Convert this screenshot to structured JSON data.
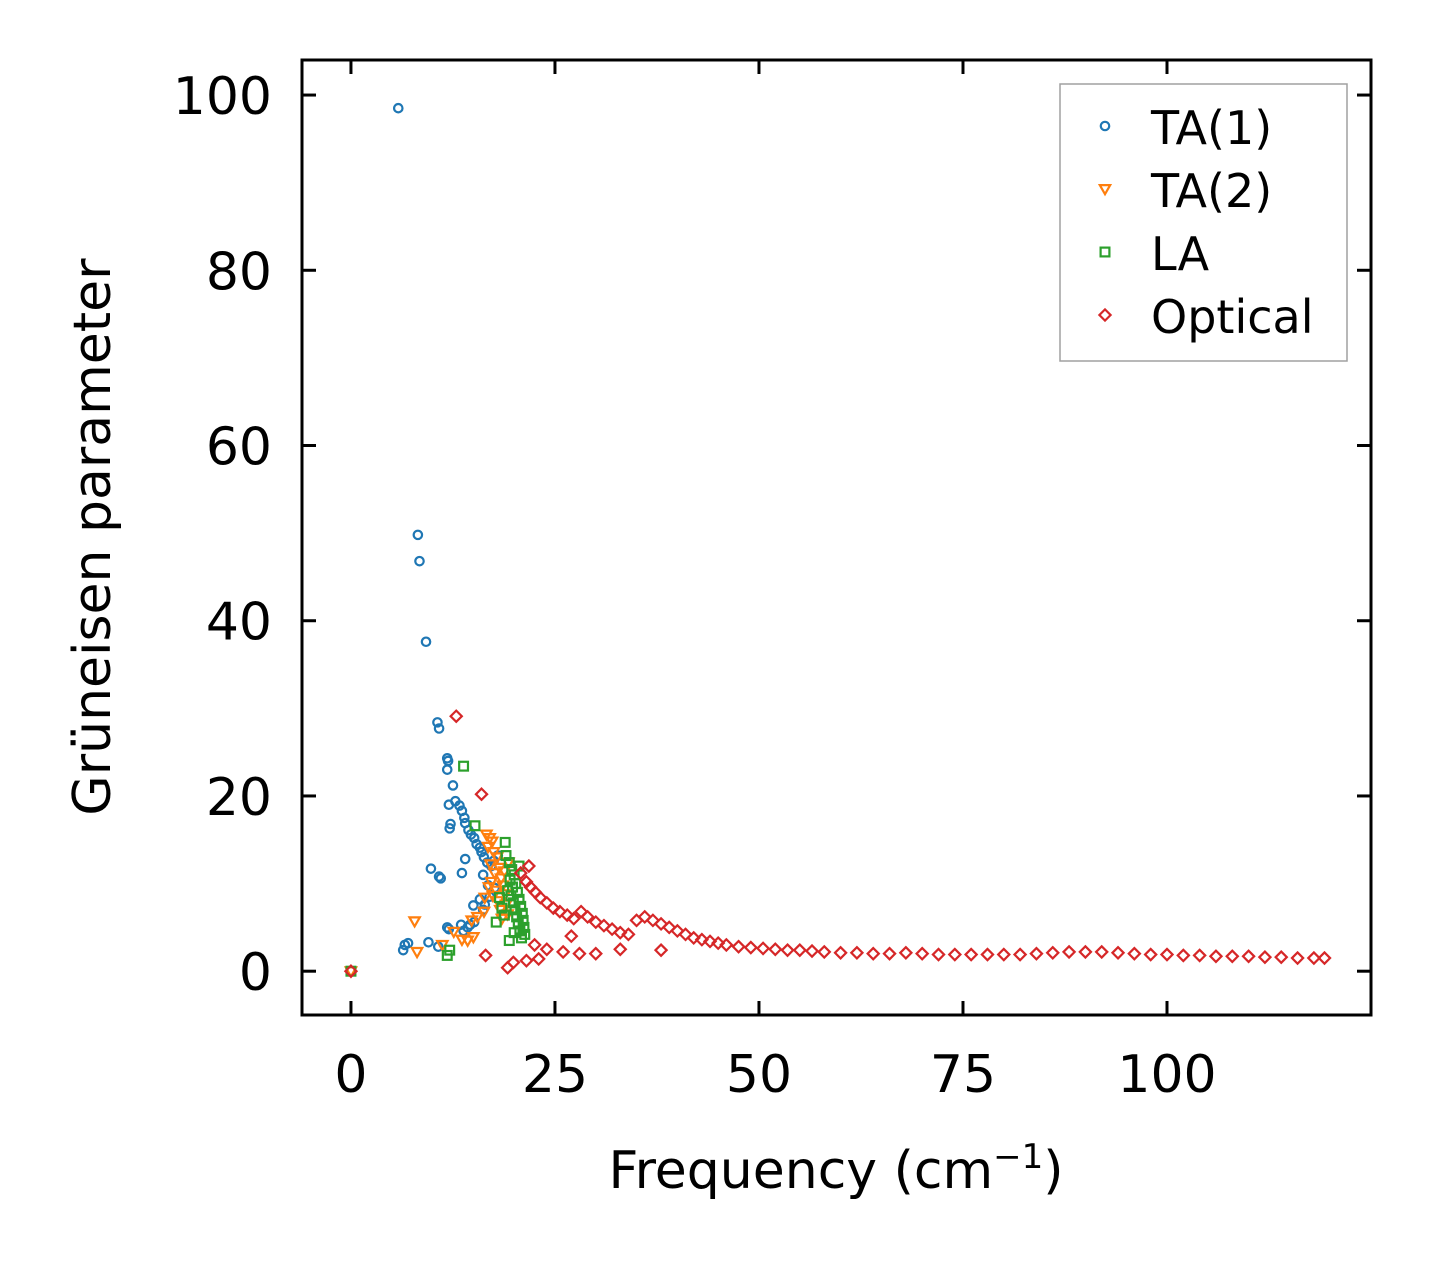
{
  "chart_data": {
    "type": "scatter",
    "title": "",
    "xlabel": "Frequency (cm",
    "xlabel_superscript": "−1",
    "xlabel_suffix": ")",
    "ylabel": "Grüneisen parameter",
    "xlim": [
      -6,
      125
    ],
    "ylim": [
      -5,
      104
    ],
    "xticks": [
      0,
      25,
      50,
      75,
      100
    ],
    "yticks": [
      0,
      20,
      40,
      60,
      80,
      100
    ],
    "xtick_labels": [
      "0",
      "25",
      "50",
      "75",
      "100"
    ],
    "ytick_labels": [
      "0",
      "20",
      "40",
      "60",
      "80",
      "100"
    ],
    "grid": false,
    "legend_position": "top-right",
    "series": [
      {
        "name": "TA(1)",
        "marker": "circle",
        "color": "#1f77b4",
        "points": [
          [
            0,
            0
          ],
          [
            5.8,
            98.5
          ],
          [
            8.2,
            49.8
          ],
          [
            8.4,
            46.8
          ],
          [
            9.2,
            37.6
          ],
          [
            10.6,
            28.4
          ],
          [
            10.8,
            27.7
          ],
          [
            11.8,
            24.3
          ],
          [
            11.9,
            24.0
          ],
          [
            11.8,
            23.0
          ],
          [
            12.5,
            21.2
          ],
          [
            12.0,
            19.0
          ],
          [
            12.8,
            19.4
          ],
          [
            13.3,
            18.9
          ],
          [
            13.6,
            18.3
          ],
          [
            13.9,
            17.5
          ],
          [
            12.2,
            16.8
          ],
          [
            14.0,
            16.9
          ],
          [
            12.1,
            16.3
          ],
          [
            14.4,
            16.1
          ],
          [
            14.7,
            15.6
          ],
          [
            15.1,
            15.2
          ],
          [
            15.4,
            14.5
          ],
          [
            15.8,
            14.1
          ],
          [
            16.0,
            13.6
          ],
          [
            16.3,
            13.0
          ],
          [
            16.7,
            12.4
          ],
          [
            14.0,
            12.8
          ],
          [
            17.2,
            12.0
          ],
          [
            13.6,
            11.2
          ],
          [
            9.8,
            11.7
          ],
          [
            10.8,
            10.8
          ],
          [
            11.0,
            10.6
          ],
          [
            16.2,
            11.0
          ],
          [
            17.6,
            9.5
          ],
          [
            15.8,
            8.2
          ],
          [
            17.0,
            8.5
          ],
          [
            16.2,
            7.0
          ],
          [
            16.4,
            7.6
          ],
          [
            15.0,
            7.5
          ],
          [
            11.8,
            5.0
          ],
          [
            12.0,
            4.8
          ],
          [
            13.8,
            4.6
          ],
          [
            14.6,
            5.3
          ],
          [
            14.3,
            5.0
          ],
          [
            6.6,
            3.0
          ],
          [
            7.0,
            3.2
          ],
          [
            9.5,
            3.3
          ],
          [
            10.7,
            2.8
          ],
          [
            6.4,
            2.4
          ],
          [
            13.5,
            5.3
          ],
          [
            15.1,
            5.6
          ],
          [
            16.8,
            9.8
          ],
          [
            17.5,
            12.6
          ],
          [
            18.0,
            13.2
          ]
        ]
      },
      {
        "name": "TA(2)",
        "marker": "triangle",
        "color": "#ff7f0e",
        "points": [
          [
            0,
            0
          ],
          [
            7.8,
            5.7
          ],
          [
            8.1,
            2.2
          ],
          [
            11.2,
            3.0
          ],
          [
            12.6,
            4.5
          ],
          [
            13.6,
            3.6
          ],
          [
            14.3,
            3.5
          ],
          [
            15.0,
            3.9
          ],
          [
            14.8,
            5.8
          ],
          [
            15.5,
            6.2
          ],
          [
            16.3,
            6.8
          ],
          [
            16.6,
            15.6
          ],
          [
            17.0,
            15.2
          ],
          [
            17.3,
            14.8
          ],
          [
            16.8,
            14.2
          ],
          [
            17.5,
            13.6
          ],
          [
            17.9,
            13.0
          ],
          [
            17.1,
            12.2
          ],
          [
            18.2,
            11.8
          ],
          [
            17.6,
            11.2
          ],
          [
            18.4,
            10.6
          ],
          [
            17.2,
            10.2
          ],
          [
            18.6,
            9.8
          ],
          [
            17.8,
            9.2
          ],
          [
            18.9,
            8.8
          ],
          [
            18.0,
            8.0
          ],
          [
            19.0,
            7.6
          ],
          [
            18.3,
            7.0
          ],
          [
            19.2,
            6.5
          ],
          [
            18.5,
            6.0
          ],
          [
            16.9,
            9.6
          ],
          [
            17.4,
            8.6
          ],
          [
            16.4,
            8.4
          ],
          [
            19.3,
            12.4
          ],
          [
            18.8,
            11.4
          ]
        ]
      },
      {
        "name": "LA",
        "marker": "square",
        "color": "#2ca02c",
        "points": [
          [
            0,
            0
          ],
          [
            11.8,
            1.8
          ],
          [
            12.1,
            2.4
          ],
          [
            13.8,
            23.4
          ],
          [
            15.2,
            16.6
          ],
          [
            18.9,
            14.7
          ],
          [
            19.0,
            13.2
          ],
          [
            19.4,
            12.4
          ],
          [
            19.7,
            11.6
          ],
          [
            20.0,
            11.0
          ],
          [
            19.5,
            10.4
          ],
          [
            20.2,
            10.0
          ],
          [
            19.8,
            9.6
          ],
          [
            20.4,
            9.0
          ],
          [
            19.6,
            8.6
          ],
          [
            20.6,
            8.2
          ],
          [
            19.9,
            7.8
          ],
          [
            20.8,
            7.4
          ],
          [
            20.1,
            7.0
          ],
          [
            21.0,
            6.6
          ],
          [
            20.3,
            6.2
          ],
          [
            21.1,
            5.8
          ],
          [
            20.5,
            5.4
          ],
          [
            21.2,
            5.0
          ],
          [
            20.7,
            4.6
          ],
          [
            21.3,
            4.2
          ],
          [
            20.9,
            3.8
          ],
          [
            19.4,
            3.5
          ],
          [
            20.0,
            4.4
          ],
          [
            18.5,
            7.2
          ],
          [
            18.2,
            8.4
          ],
          [
            17.8,
            5.6
          ],
          [
            18.8,
            6.4
          ],
          [
            19.2,
            9.2
          ],
          [
            20.6,
            12.0
          ]
        ]
      },
      {
        "name": "Optical",
        "marker": "diamond",
        "color": "#d62728",
        "points": [
          [
            0,
            0
          ],
          [
            12.9,
            29.1
          ],
          [
            16.0,
            20.2
          ],
          [
            21.8,
            12.0
          ],
          [
            16.5,
            1.8
          ],
          [
            19.2,
            0.4
          ],
          [
            19.9,
            1.0
          ],
          [
            20.8,
            11.2
          ],
          [
            21.5,
            10.2
          ],
          [
            22.0,
            9.6
          ],
          [
            22.6,
            9.0
          ],
          [
            23.2,
            8.4
          ],
          [
            24.0,
            7.8
          ],
          [
            24.8,
            7.2
          ],
          [
            25.6,
            6.8
          ],
          [
            26.5,
            6.4
          ],
          [
            27.3,
            6.0
          ],
          [
            28.2,
            6.8
          ],
          [
            29.0,
            6.2
          ],
          [
            30.0,
            5.6
          ],
          [
            31.0,
            5.2
          ],
          [
            32.0,
            4.8
          ],
          [
            33.0,
            4.4
          ],
          [
            34.0,
            4.2
          ],
          [
            35.0,
            5.8
          ],
          [
            36.0,
            6.2
          ],
          [
            37.0,
            5.8
          ],
          [
            38.0,
            5.4
          ],
          [
            39.0,
            5.0
          ],
          [
            40.0,
            4.6
          ],
          [
            41.0,
            4.2
          ],
          [
            42.0,
            3.8
          ],
          [
            43.0,
            3.6
          ],
          [
            44.0,
            3.4
          ],
          [
            45.0,
            3.2
          ],
          [
            46.0,
            3.0
          ],
          [
            47.5,
            2.8
          ],
          [
            49.0,
            2.7
          ],
          [
            50.5,
            2.6
          ],
          [
            52.0,
            2.5
          ],
          [
            53.5,
            2.4
          ],
          [
            55.0,
            2.4
          ],
          [
            56.5,
            2.3
          ],
          [
            58.0,
            2.2
          ],
          [
            60.0,
            2.1
          ],
          [
            62.0,
            2.1
          ],
          [
            64.0,
            2.0
          ],
          [
            66.0,
            2.0
          ],
          [
            68.0,
            2.1
          ],
          [
            70.0,
            2.0
          ],
          [
            72.0,
            1.9
          ],
          [
            74.0,
            1.9
          ],
          [
            76.0,
            1.9
          ],
          [
            78.0,
            1.9
          ],
          [
            80.0,
            1.9
          ],
          [
            82.0,
            1.9
          ],
          [
            84.0,
            2.0
          ],
          [
            86.0,
            2.1
          ],
          [
            88.0,
            2.2
          ],
          [
            90.0,
            2.2
          ],
          [
            92.0,
            2.2
          ],
          [
            94.0,
            2.1
          ],
          [
            96.0,
            2.0
          ],
          [
            98.0,
            1.9
          ],
          [
            100.0,
            1.9
          ],
          [
            102.0,
            1.8
          ],
          [
            104.0,
            1.8
          ],
          [
            106.0,
            1.7
          ],
          [
            108.0,
            1.7
          ],
          [
            110.0,
            1.7
          ],
          [
            112.0,
            1.6
          ],
          [
            114.0,
            1.6
          ],
          [
            116.0,
            1.5
          ],
          [
            118.0,
            1.5
          ],
          [
            119.3,
            1.5
          ],
          [
            22.5,
            3.0
          ],
          [
            24.0,
            2.5
          ],
          [
            26.0,
            2.2
          ],
          [
            28.0,
            2.0
          ],
          [
            30.0,
            2.0
          ],
          [
            23.0,
            1.4
          ],
          [
            21.5,
            1.2
          ],
          [
            27.0,
            4.0
          ],
          [
            33.0,
            2.5
          ],
          [
            38.0,
            2.4
          ]
        ]
      }
    ]
  }
}
